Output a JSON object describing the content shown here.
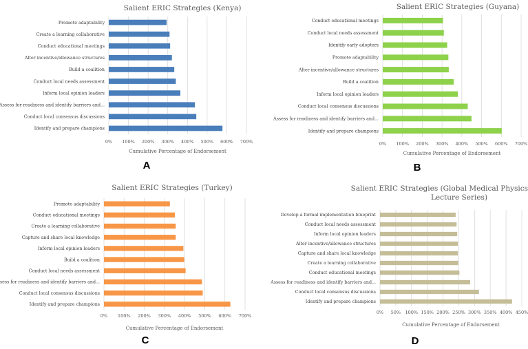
{
  "chart_data": [
    {
      "type": "bar",
      "panel_label": "A",
      "title": "Salient ERIC Strategies (Kenya)",
      "title_line2": "",
      "xlabel": "Cumulative Percentage of Endorsement",
      "ylabel": "",
      "color": "#4A7EBB",
      "xlim": [
        0,
        700
      ],
      "ticks": [
        "0%",
        "100%",
        "200%",
        "300%",
        "400%",
        "500%",
        "600%",
        "700%"
      ],
      "tick_values": [
        0,
        100,
        200,
        300,
        400,
        500,
        600,
        700
      ],
      "grid": true,
      "categories": [
        "Promote adaptability",
        "Create a learning collaborative",
        "Conduct educational meetings",
        "Alter incentive/allowance structures",
        "Build a coalition",
        "Conduct local needs assessment",
        "Inform local opinion leaders",
        "Assess for readiness and identify barriers and...",
        "Conduct local consensus discussions",
        "Identify and prepare champions"
      ],
      "values": [
        294,
        309,
        312,
        321,
        333,
        341,
        364,
        438,
        445,
        578
      ]
    },
    {
      "type": "bar",
      "panel_label": "B",
      "title": "Salient ERIC Strategies (Guyana)",
      "title_line2": "",
      "xlabel": "Cumulative Percentage of Endorsement",
      "ylabel": "",
      "color": "#8ED14B",
      "xlim": [
        0,
        700
      ],
      "ticks": [
        "0%",
        "100%",
        "200%",
        "300%",
        "400%",
        "500%",
        "600%",
        "700%"
      ],
      "tick_values": [
        0,
        100,
        200,
        300,
        400,
        500,
        600,
        700
      ],
      "grid": true,
      "categories": [
        "Conduct educational meetings",
        "Conduct local needs assessment",
        "Identify early adopters",
        "Promote adaptability",
        "Alter incentive/allowance structures",
        "Build a coalition",
        "Inform local opinion leaders",
        "Conduct local consensus discussions",
        "Assess for readiness and identify barriers and...",
        "Identify and prepare champions"
      ],
      "values": [
        305,
        309,
        326,
        332,
        334,
        359,
        380,
        430,
        449,
        602
      ]
    },
    {
      "type": "bar",
      "panel_label": "C",
      "title": "Salient ERIC Strategies (Turkey)",
      "title_line2": "",
      "xlabel": "Cumulative Percentage of Endorsement",
      "ylabel": "",
      "color": "#F79646",
      "xlim": [
        0,
        700
      ],
      "ticks": [
        "0%",
        "100%",
        "200%",
        "300%",
        "400%",
        "500%",
        "600%",
        "700%"
      ],
      "tick_values": [
        0,
        100,
        200,
        300,
        400,
        500,
        600,
        700
      ],
      "grid": true,
      "categories": [
        "Promote adaptability",
        "Conduct educational meetings",
        "Create a learning collaborative",
        "Capture and share local knowledge",
        "Inform local opinion leaders",
        "Build a coalition",
        "Conduct local needs assessment",
        "Assess for readiness and identify barriers and...",
        "Conduct local consensus discussions",
        "Identify and prepare champions"
      ],
      "values": [
        327,
        352,
        356,
        356,
        394,
        398,
        405,
        486,
        490,
        627
      ]
    },
    {
      "type": "bar",
      "panel_label": "D",
      "title": "Salient ERIC Strategies (Global Medical Physics Education",
      "title_line2": "Lecture Series)",
      "xlabel": "Cumulative Percentage of Endorsement",
      "ylabel": "",
      "color": "#C4BD97",
      "xlim": [
        0,
        450
      ],
      "ticks": [
        "0%",
        "50%",
        "100%",
        "150%",
        "200%",
        "250%",
        "300%",
        "350%",
        "400%",
        "450%"
      ],
      "tick_values": [
        0,
        50,
        100,
        150,
        200,
        250,
        300,
        350,
        400,
        450
      ],
      "grid": true,
      "categories": [
        "Develop a formal implementation blueprint",
        "Conduct local needs assessment",
        "Inform local opinion leaders",
        "Alter incentive/allowance structures",
        "Capture and share local knowledge",
        "Create a learning collaborative",
        "Conduct educational meetings",
        "Assess for readiness and identify barriers and...",
        "Conduct local consensus discussions",
        "Identify and prepare champions"
      ],
      "values": [
        240,
        243,
        245,
        247,
        247,
        248,
        252,
        286,
        314,
        419
      ]
    }
  ]
}
